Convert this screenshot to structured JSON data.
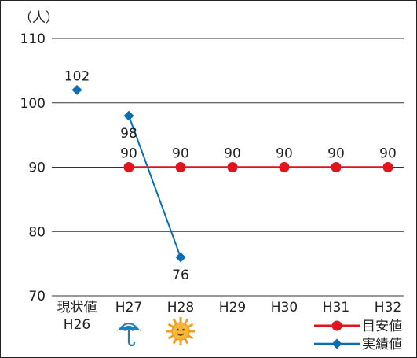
{
  "chart_data": {
    "type": "line",
    "unit_label": "（人）",
    "categories": [
      {
        "line1": "現状値",
        "line2": "H26"
      },
      {
        "line1": "H27",
        "line2": ""
      },
      {
        "line1": "H28",
        "line2": ""
      },
      {
        "line1": "H29",
        "line2": ""
      },
      {
        "line1": "H30",
        "line2": ""
      },
      {
        "line1": "H31",
        "line2": ""
      },
      {
        "line1": "H32",
        "line2": ""
      }
    ],
    "ylim": [
      70,
      110
    ],
    "yticks": [
      70,
      80,
      90,
      100,
      110
    ],
    "grid": true,
    "legend_position": "bottom-right",
    "series": [
      {
        "name": "目安値",
        "color": "#e1141e",
        "marker": "circle",
        "values": [
          null,
          90,
          90,
          90,
          90,
          90,
          90
        ]
      },
      {
        "name": "実績値",
        "color": "#0a6eb4",
        "marker": "diamond",
        "values": [
          102,
          98,
          76,
          null,
          null,
          null,
          null
        ],
        "connect_from_index": 1
      }
    ],
    "weather_icons": [
      {
        "category_index": 1,
        "icon": "umbrella-icon"
      },
      {
        "category_index": 2,
        "icon": "sun-icon"
      }
    ]
  }
}
